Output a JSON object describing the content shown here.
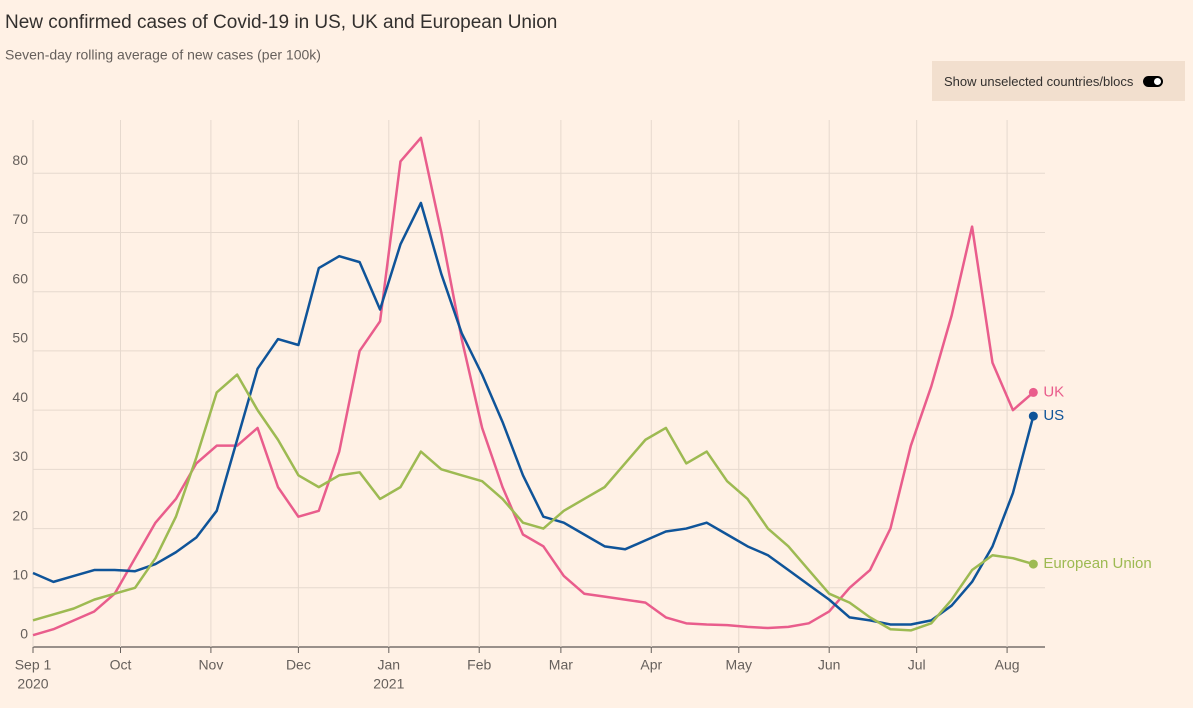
{
  "chart_data": {
    "type": "line",
    "title": "New confirmed cases of Covid-19 in US, UK and European Union",
    "subtitle": "Seven-day rolling average of new cases (per 100k)",
    "toggle_label": "Show unselected countries/blocs",
    "x": [
      "2020-09-01",
      "2020-09-08",
      "2020-09-15",
      "2020-09-22",
      "2020-09-29",
      "2020-10-06",
      "2020-10-13",
      "2020-10-20",
      "2020-10-27",
      "2020-11-03",
      "2020-11-10",
      "2020-11-17",
      "2020-11-24",
      "2020-12-01",
      "2020-12-08",
      "2020-12-15",
      "2020-12-22",
      "2020-12-29",
      "2021-01-05",
      "2021-01-12",
      "2021-01-19",
      "2021-01-26",
      "2021-02-02",
      "2021-02-09",
      "2021-02-16",
      "2021-02-23",
      "2021-03-02",
      "2021-03-09",
      "2021-03-16",
      "2021-03-23",
      "2021-03-30",
      "2021-04-06",
      "2021-04-13",
      "2021-04-20",
      "2021-04-27",
      "2021-05-04",
      "2021-05-11",
      "2021-05-18",
      "2021-05-25",
      "2021-06-01",
      "2021-06-08",
      "2021-06-15",
      "2021-06-22",
      "2021-06-29",
      "2021-07-06",
      "2021-07-13",
      "2021-07-20",
      "2021-07-27",
      "2021-08-03",
      "2021-08-10"
    ],
    "series": [
      {
        "name": "UK",
        "color": "#e95d8c",
        "values": [
          2,
          3,
          4.5,
          6,
          9,
          15,
          21,
          25,
          31,
          34,
          34,
          37,
          27,
          22,
          23,
          33,
          50,
          55,
          82,
          86,
          70,
          52,
          37,
          27,
          19,
          17,
          12,
          9,
          8.5,
          8,
          7.5,
          5,
          4,
          3.8,
          3.7,
          3.4,
          3.2,
          3.4,
          4,
          6,
          10,
          13,
          20,
          34,
          44,
          56,
          71,
          48,
          40,
          43
        ]
      },
      {
        "name": "US",
        "color": "#0f5499",
        "values": [
          12.5,
          11,
          12,
          13,
          13,
          12.8,
          14,
          16,
          18.5,
          23,
          35,
          47,
          52,
          51,
          64,
          66,
          65,
          57,
          68,
          75,
          63,
          53,
          46,
          38,
          29,
          22,
          21,
          19,
          17,
          16.5,
          18,
          19.5,
          20,
          21,
          19,
          17,
          15.5,
          13,
          10.5,
          8,
          5,
          4.5,
          3.8,
          3.8,
          4.5,
          7,
          11,
          17,
          26,
          39
        ]
      },
      {
        "name": "European Union",
        "color": "#9dba52",
        "values": [
          4.5,
          5.5,
          6.5,
          8,
          9,
          10,
          15,
          22,
          32,
          43,
          46,
          40,
          35,
          29,
          27,
          29,
          29.5,
          25,
          27,
          33,
          30,
          29,
          28,
          25,
          21,
          20,
          23,
          25,
          27,
          31,
          35,
          37,
          31,
          33,
          28,
          25,
          20,
          17,
          13,
          9,
          7.5,
          5,
          3,
          2.8,
          4,
          8,
          13,
          15.5,
          15,
          14
        ]
      }
    ],
    "xlim": [
      "2020-09-01",
      "2021-08-14"
    ],
    "xticks": [
      {
        "value": "2020-09-01",
        "label": "Sep 1"
      },
      {
        "value": "2020-10-01",
        "label": "Oct"
      },
      {
        "value": "2020-11-01",
        "label": "Nov"
      },
      {
        "value": "2020-12-01",
        "label": "Dec"
      },
      {
        "value": "2021-01-01",
        "label": "Jan"
      },
      {
        "value": "2021-02-01",
        "label": "Feb"
      },
      {
        "value": "2021-03-01",
        "label": "Mar"
      },
      {
        "value": "2021-04-01",
        "label": "Apr"
      },
      {
        "value": "2021-05-01",
        "label": "May"
      },
      {
        "value": "2021-06-01",
        "label": "Jun"
      },
      {
        "value": "2021-07-01",
        "label": "Jul"
      },
      {
        "value": "2021-08-01",
        "label": "Aug"
      }
    ],
    "year_labels": [
      {
        "value": "2020-09-01",
        "label": "2020"
      },
      {
        "value": "2021-01-01",
        "label": "2021"
      }
    ],
    "ylim": [
      0,
      89
    ],
    "yticks": [
      0,
      10,
      20,
      30,
      40,
      50,
      60,
      70,
      80
    ],
    "grid": true
  }
}
